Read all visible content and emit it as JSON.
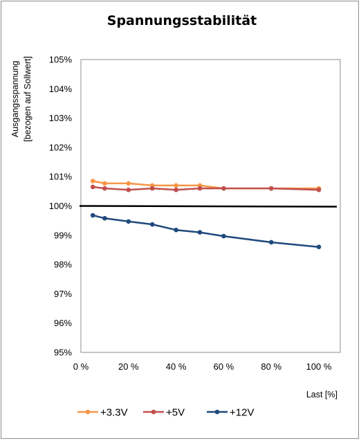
{
  "chart_data": {
    "type": "line",
    "title": "Spannungsstabilität",
    "ylabel_lines": [
      "Ausgangsspannung",
      "[bezogen auf Sollwert]"
    ],
    "xlabel": "Last [%]",
    "x_ticks": [
      "0 %",
      "20 %",
      "40 %",
      "60 %",
      "80 %",
      "100 %"
    ],
    "x_tick_values": [
      0,
      20,
      40,
      60,
      80,
      100
    ],
    "y_ticks": [
      "95%",
      "96%",
      "97%",
      "98%",
      "99%",
      "100%",
      "101%",
      "102%",
      "103%",
      "104%",
      "105%"
    ],
    "y_tick_values": [
      95,
      96,
      97,
      98,
      99,
      100,
      101,
      102,
      103,
      104,
      105
    ],
    "xlim": [
      0,
      109
    ],
    "ylim": [
      95,
      105
    ],
    "grid": false,
    "legend_position": "bottom",
    "reference_line": {
      "value": 100,
      "color": "#000000"
    },
    "x": [
      5,
      10,
      20,
      30,
      40,
      50,
      60,
      80,
      100
    ],
    "series": [
      {
        "name": "+3.3V",
        "color": "#f79646",
        "values": [
          100.85,
          100.77,
          100.77,
          100.7,
          100.7,
          100.7,
          100.6,
          100.6,
          100.6
        ]
      },
      {
        "name": "+5V",
        "color": "#c0504d",
        "values": [
          100.65,
          100.6,
          100.55,
          100.6,
          100.55,
          100.6,
          100.6,
          100.6,
          100.55
        ]
      },
      {
        "name": "+12V",
        "color": "#1f497d",
        "values": [
          99.68,
          99.58,
          99.47,
          99.37,
          99.18,
          99.1,
          98.97,
          98.76,
          98.6
        ]
      }
    ]
  }
}
